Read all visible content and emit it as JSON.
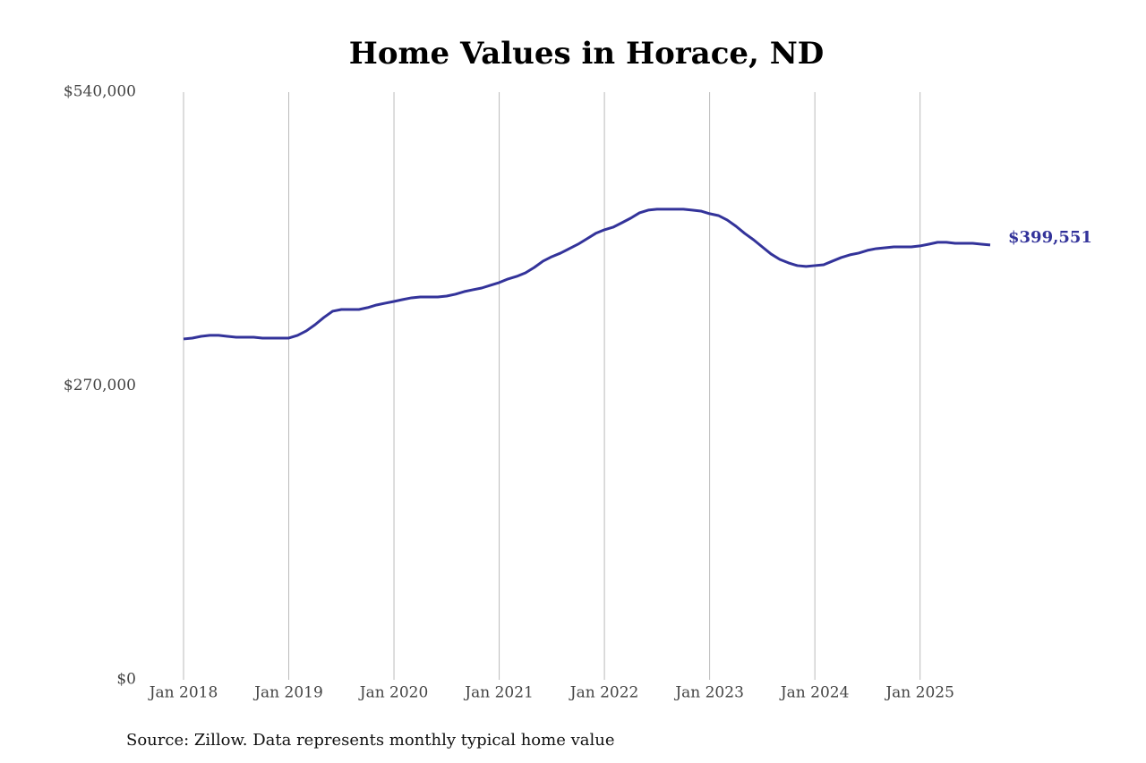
{
  "chart_data": {
    "type": "line",
    "title": "Home Values in Horace, ND",
    "source": "Source: Zillow. Data represents monthly typical home value",
    "color": "#33339a",
    "x": [
      "2018-01",
      "2018-02",
      "2018-03",
      "2018-04",
      "2018-05",
      "2018-06",
      "2018-07",
      "2018-08",
      "2018-09",
      "2018-10",
      "2018-11",
      "2018-12",
      "2019-01",
      "2019-02",
      "2019-03",
      "2019-04",
      "2019-05",
      "2019-06",
      "2019-07",
      "2019-08",
      "2019-09",
      "2019-10",
      "2019-11",
      "2019-12",
      "2020-01",
      "2020-02",
      "2020-03",
      "2020-04",
      "2020-05",
      "2020-06",
      "2020-07",
      "2020-08",
      "2020-09",
      "2020-10",
      "2020-11",
      "2020-12",
      "2021-01",
      "2021-02",
      "2021-03",
      "2021-04",
      "2021-05",
      "2021-06",
      "2021-07",
      "2021-08",
      "2021-09",
      "2021-10",
      "2021-11",
      "2021-12",
      "2022-01",
      "2022-02",
      "2022-03",
      "2022-04",
      "2022-05",
      "2022-06",
      "2022-07",
      "2022-08",
      "2022-09",
      "2022-10",
      "2022-11",
      "2022-12",
      "2023-01",
      "2023-02",
      "2023-03",
      "2023-04",
      "2023-05",
      "2023-06",
      "2023-07",
      "2023-08",
      "2023-09",
      "2023-10",
      "2023-11",
      "2023-12",
      "2024-01",
      "2024-02",
      "2024-03",
      "2024-04",
      "2024-05",
      "2024-06",
      "2024-07",
      "2024-08",
      "2024-09",
      "2024-10",
      "2024-11",
      "2024-12",
      "2025-01",
      "2025-02",
      "2025-03",
      "2025-04",
      "2025-05",
      "2025-06",
      "2025-07",
      "2025-08",
      "2025-09"
    ],
    "values": [
      313200,
      314000,
      315600,
      316500,
      316500,
      315600,
      314800,
      314800,
      314800,
      314000,
      314000,
      314000,
      314000,
      316500,
      320600,
      326300,
      332900,
      338700,
      340300,
      340300,
      340300,
      342000,
      344400,
      346100,
      347700,
      349400,
      351000,
      351800,
      351800,
      351800,
      352600,
      354300,
      356700,
      358400,
      360000,
      362500,
      365000,
      368300,
      370700,
      374000,
      378900,
      384700,
      388800,
      392100,
      396200,
      400300,
      405200,
      410200,
      413500,
      415900,
      420000,
      424200,
      429100,
      431600,
      432400,
      432400,
      432400,
      432400,
      431600,
      430700,
      428300,
      426600,
      422500,
      416800,
      410200,
      404400,
      397800,
      391300,
      386300,
      383100,
      380600,
      379800,
      380600,
      381400,
      384700,
      388000,
      390500,
      392100,
      394600,
      396200,
      397000,
      397800,
      397800,
      397800,
      398700,
      400300,
      402000,
      402000,
      401100,
      401100,
      401100,
      400300,
      399551
    ],
    "value_labels": [
      null,
      null,
      null,
      null,
      null,
      null,
      null,
      null,
      null,
      null,
      null,
      null,
      null,
      null,
      null,
      null,
      null,
      null,
      null,
      null,
      null,
      null,
      null,
      null,
      null,
      null,
      null,
      null,
      null,
      null,
      null,
      null,
      null,
      null,
      null,
      null,
      null,
      null,
      null,
      null,
      null,
      null,
      null,
      null,
      null,
      null,
      null,
      null,
      null,
      null,
      null,
      null,
      null,
      null,
      null,
      null,
      null,
      null,
      null,
      null,
      null,
      null,
      null,
      null,
      null,
      null,
      null,
      null,
      null,
      null,
      null,
      null,
      null,
      null,
      null,
      null,
      null,
      null,
      null,
      null,
      null,
      null,
      null,
      null,
      null,
      null,
      null,
      null,
      null,
      null,
      null,
      null,
      "$399,551"
    ],
    "xlim": [
      "2018-01",
      "2025-09"
    ],
    "xticks": [
      {
        "value": "2018-01",
        "label": "Jan 2018"
      },
      {
        "value": "2019-01",
        "label": "Jan 2019"
      },
      {
        "value": "2020-01",
        "label": "Jan 2020"
      },
      {
        "value": "2021-01",
        "label": "Jan 2021"
      },
      {
        "value": "2022-01",
        "label": "Jan 2022"
      },
      {
        "value": "2023-01",
        "label": "Jan 2023"
      },
      {
        "value": "2024-01",
        "label": "Jan 2024"
      },
      {
        "value": "2025-01",
        "label": "Jan 2025"
      }
    ],
    "ylim": [
      0,
      540000
    ],
    "yticks": [
      {
        "value": 0,
        "label": "$0"
      },
      {
        "value": 270000,
        "label": "$270,000"
      },
      {
        "value": 540000,
        "label": "$540,000"
      }
    ],
    "grid": "x"
  }
}
